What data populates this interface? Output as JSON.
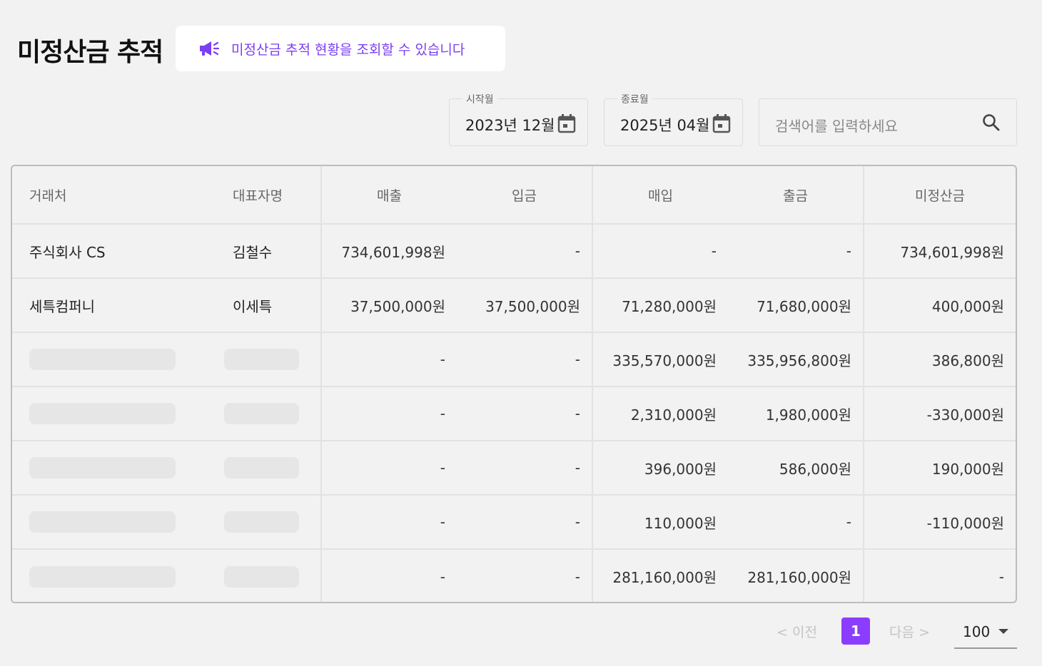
{
  "page": {
    "title": "미정산금 추적",
    "notice": "미정산금 추적 현황을 조회할 수 있습니다"
  },
  "filters": {
    "start_label": "시작월",
    "start_value": "2023년 12월",
    "end_label": "종료월",
    "end_value": "2025년 04월",
    "search_placeholder": "검색어를 입력하세요"
  },
  "table": {
    "headers": {
      "partner": "거래처",
      "representative": "대표자명",
      "sales": "매출",
      "deposit": "입금",
      "purchase": "매입",
      "withdrawal": "출금",
      "unsettled": "미정산금"
    },
    "rows": [
      {
        "partner": "주식회사 CS",
        "representative": "김철수",
        "sales": "734,601,998원",
        "deposit": "-",
        "purchase": "-",
        "withdrawal": "-",
        "unsettled": "734,601,998원"
      },
      {
        "partner": "세특컴퍼니",
        "representative": "이세특",
        "sales": "37,500,000원",
        "deposit": "37,500,000원",
        "purchase": "71,280,000원",
        "withdrawal": "71,680,000원",
        "unsettled": "400,000원"
      },
      {
        "partner": "",
        "representative": "",
        "sales": "-",
        "deposit": "-",
        "purchase": "335,570,000원",
        "withdrawal": "335,956,800원",
        "unsettled": "386,800원"
      },
      {
        "partner": "",
        "representative": "",
        "sales": "-",
        "deposit": "-",
        "purchase": "2,310,000원",
        "withdrawal": "1,980,000원",
        "unsettled": "-330,000원"
      },
      {
        "partner": "",
        "representative": "",
        "sales": "-",
        "deposit": "-",
        "purchase": "396,000원",
        "withdrawal": "586,000원",
        "unsettled": "190,000원"
      },
      {
        "partner": "",
        "representative": "",
        "sales": "-",
        "deposit": "-",
        "purchase": "110,000원",
        "withdrawal": "-",
        "unsettled": "-110,000원"
      },
      {
        "partner": "",
        "representative": "",
        "sales": "-",
        "deposit": "-",
        "purchase": "281,160,000원",
        "withdrawal": "281,160,000원",
        "unsettled": "-"
      }
    ]
  },
  "pagination": {
    "prev": "< 이전",
    "current": "1",
    "next": "다음 >",
    "per_page": "100"
  },
  "colors": {
    "accent": "#8b3dff",
    "notice_text": "#7b3ff2"
  }
}
